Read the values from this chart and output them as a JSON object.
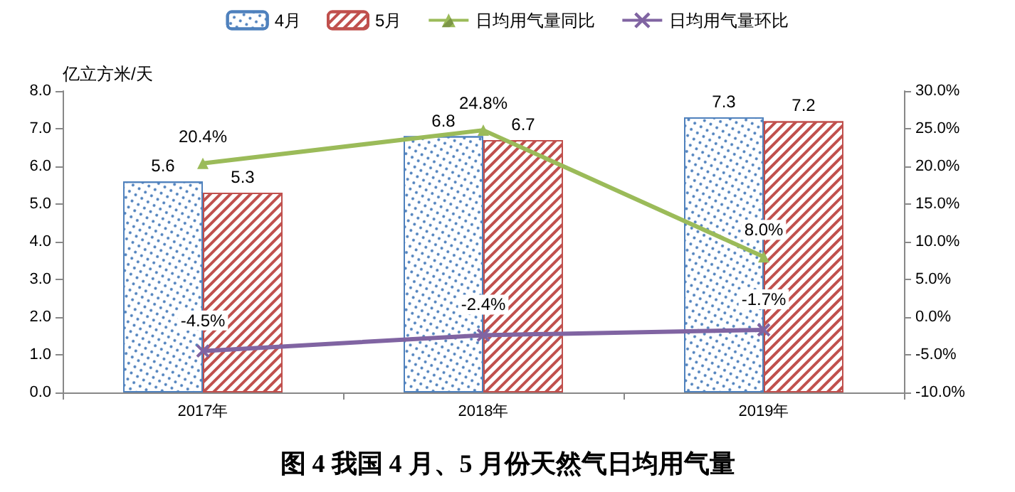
{
  "chart_data": {
    "type": "bar",
    "title": "图 4 我国 4 月、5 月份天然气日均用气量",
    "ylabel": "亿立方米/天",
    "categories": [
      "2017年",
      "2018年",
      "2019年"
    ],
    "series": [
      {
        "name": "4月",
        "color": "#4f81bd",
        "values": [
          5.6,
          6.8,
          7.3
        ]
      },
      {
        "name": "5月",
        "color": "#c0504d",
        "values": [
          5.3,
          6.7,
          7.2
        ]
      },
      {
        "name": "日均用气量同比",
        "type": "line",
        "axis": "y2",
        "color": "#9bbb59",
        "marker": "triangle",
        "values": [
          20.4,
          24.8,
          8.0
        ],
        "value_labels": [
          "20.4%",
          "24.8%",
          "8.0%"
        ]
      },
      {
        "name": "日均用气量环比",
        "type": "line",
        "axis": "y2",
        "color": "#8064a2",
        "marker": "cross",
        "values": [
          -4.5,
          -2.4,
          -1.7
        ],
        "value_labels": [
          "-4.5%",
          "-2.4%",
          "-1.7%"
        ]
      }
    ],
    "ylim": [
      0,
      8
    ],
    "yticks": [
      {
        "value": 0,
        "label": "0.0"
      },
      {
        "value": 1,
        "label": "1.0"
      },
      {
        "value": 2,
        "label": "2.0"
      },
      {
        "value": 3,
        "label": "3.0"
      },
      {
        "value": 4,
        "label": "4.0"
      },
      {
        "value": 5,
        "label": "5.0"
      },
      {
        "value": 6,
        "label": "6.0"
      },
      {
        "value": 7,
        "label": "7.0"
      },
      {
        "value": 8,
        "label": "8.0"
      }
    ],
    "y2lim": [
      -10,
      30
    ],
    "y2ticks": [
      {
        "value": -10,
        "label": "-10.0%"
      },
      {
        "value": -5,
        "label": "-5.0%"
      },
      {
        "value": 0,
        "label": "0.0%"
      },
      {
        "value": 5,
        "label": "5.0%"
      },
      {
        "value": 10,
        "label": "10.0%"
      },
      {
        "value": 15,
        "label": "15.0%"
      },
      {
        "value": 20,
        "label": "20.0%"
      },
      {
        "value": 25,
        "label": "25.0%"
      },
      {
        "value": 30,
        "label": "30.0%"
      }
    ],
    "data_labels": true,
    "grid": false,
    "legend": "top"
  }
}
